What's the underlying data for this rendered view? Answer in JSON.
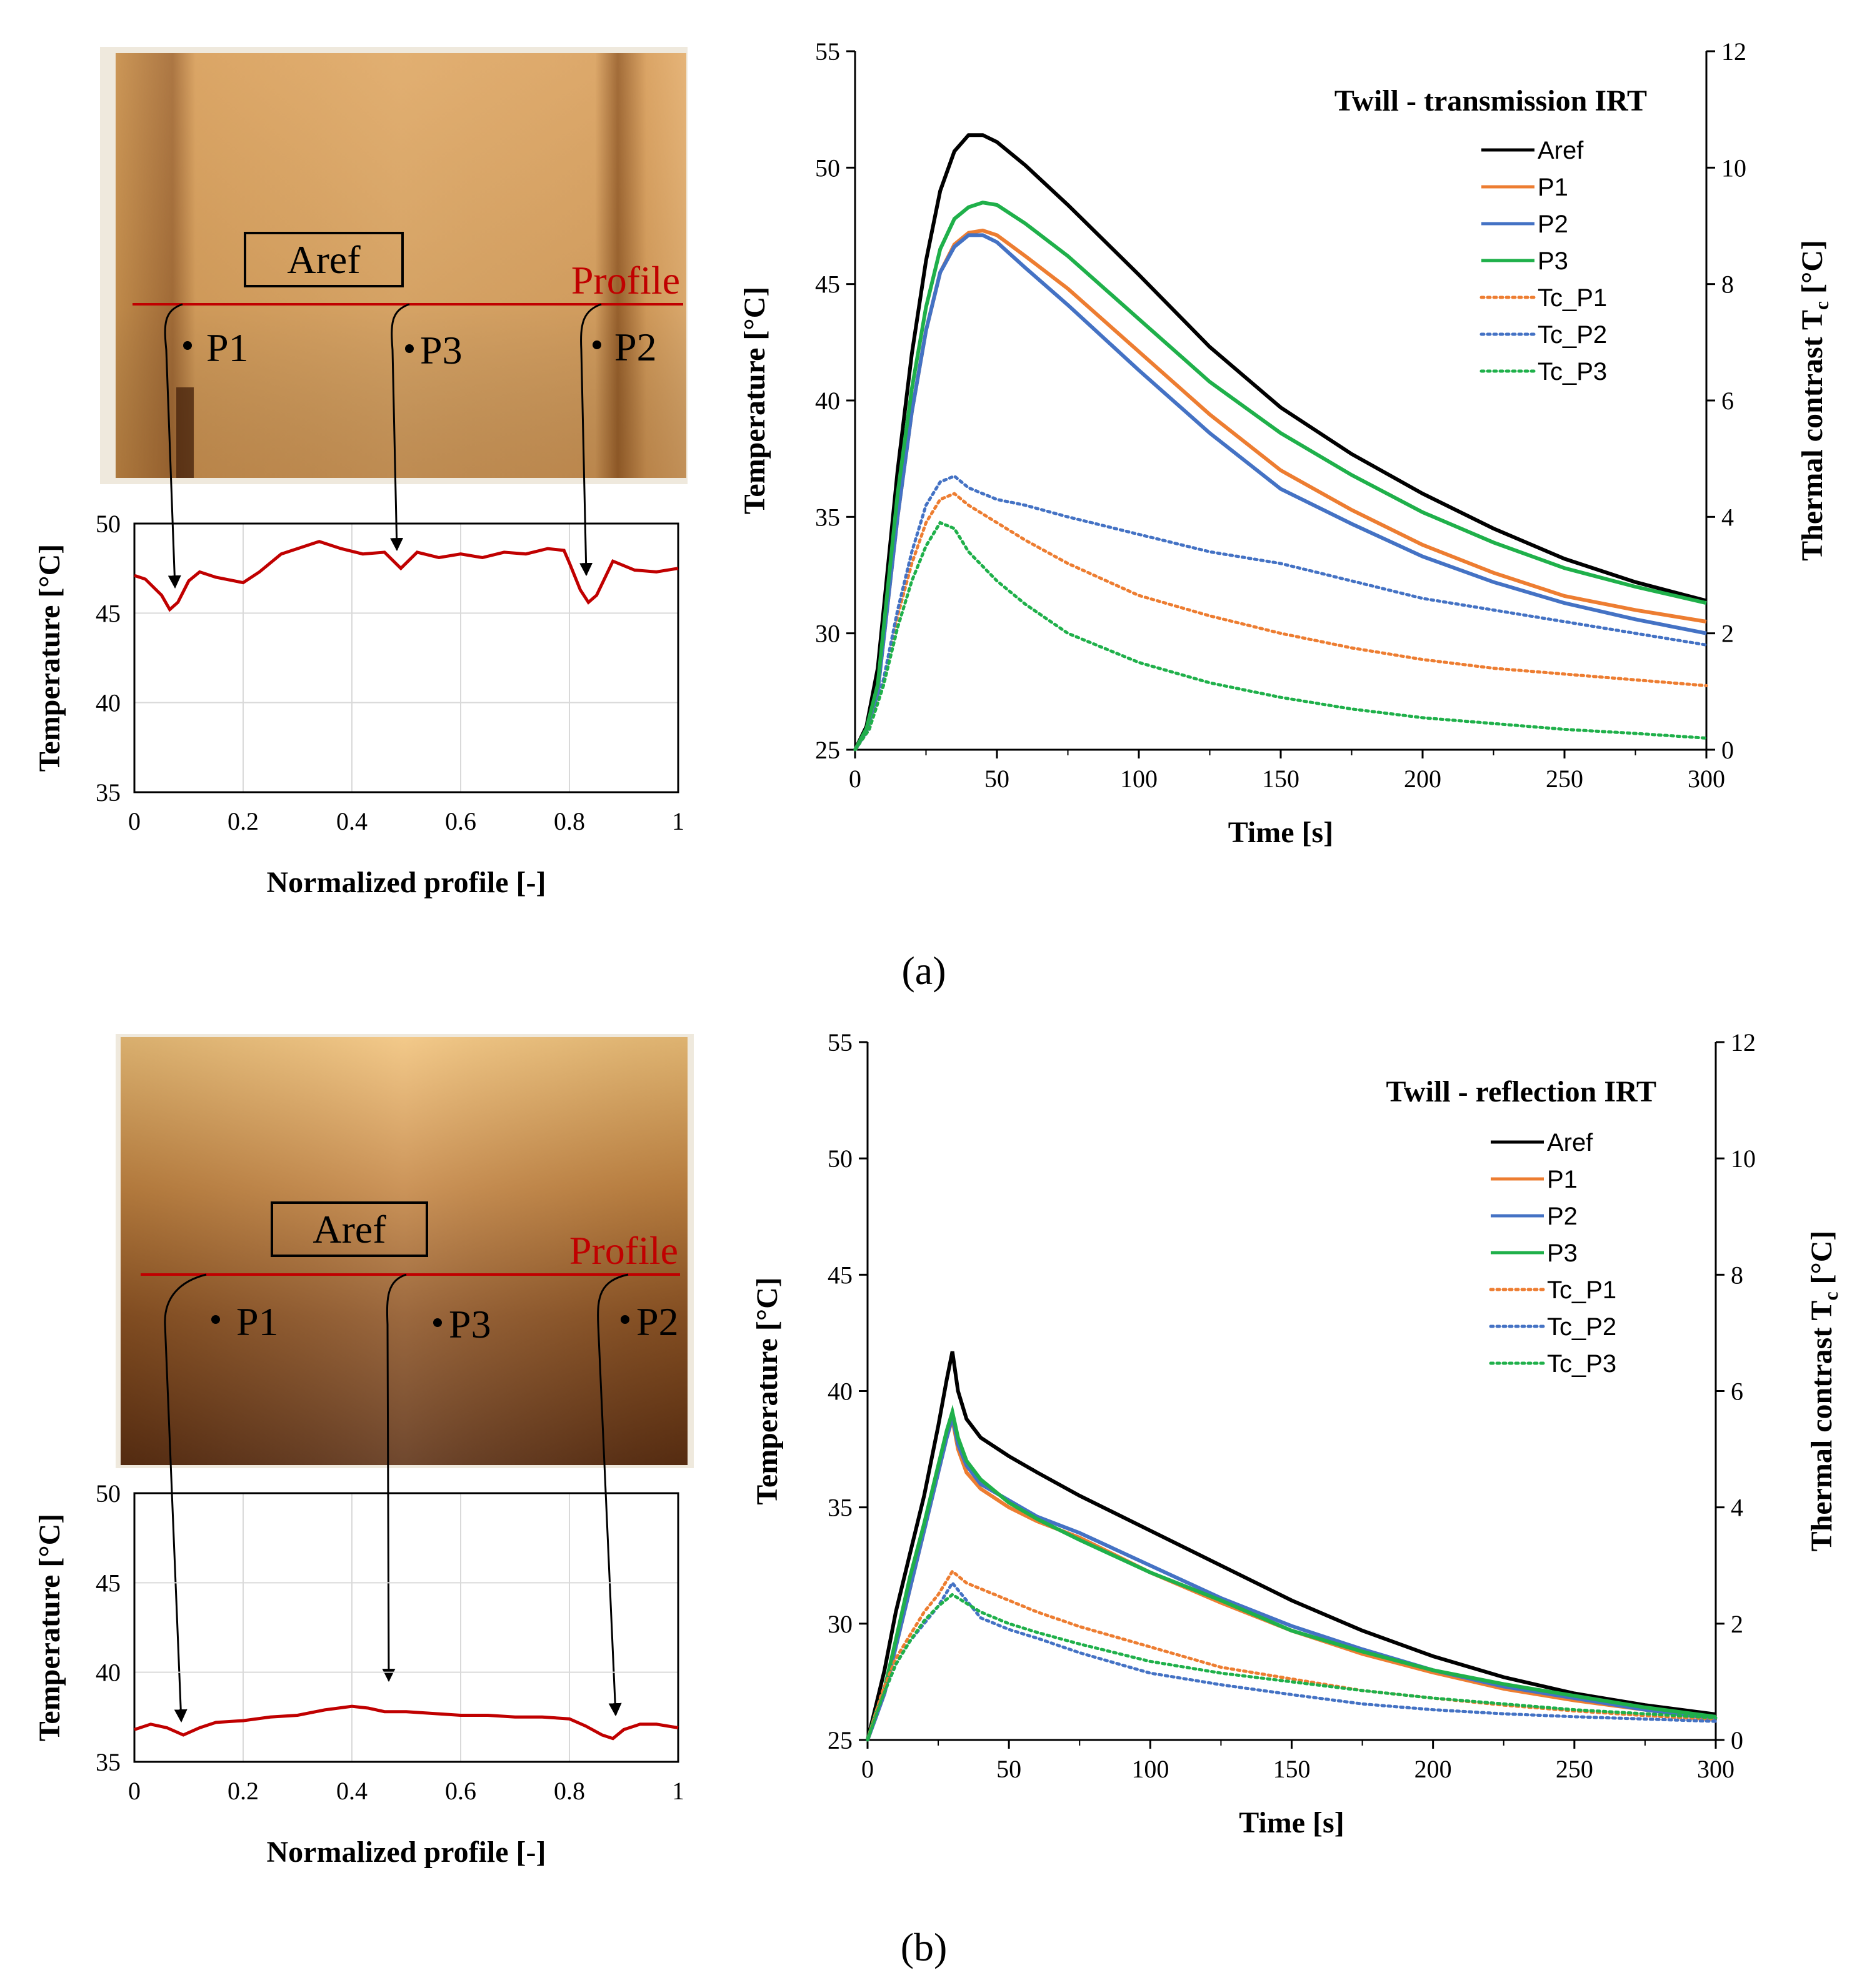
{
  "colors": {
    "aref": "#000000",
    "p1": "#ed7d31",
    "p2": "#4472c4",
    "p3": "#1fb04a",
    "profile": "#c00000"
  },
  "panels": [
    {
      "caption": "(a)",
      "image": {
        "aref_label": "Aref",
        "profile_label": "Profile",
        "points": [
          "P1",
          "P3",
          "P2"
        ],
        "style": "transmission-thermogram"
      },
      "profile_chart": {
        "type": "line",
        "xlabel": "Normalized profile [-]",
        "ylabel": "Temperature [°C]",
        "xlim": [
          0,
          1
        ],
        "ylim": [
          35,
          50
        ],
        "xticks": [
          "0",
          "0.2",
          "0.4",
          "0.6",
          "0.8",
          "1"
        ],
        "yticks": [
          "35",
          "40",
          "45",
          "50"
        ],
        "x": [
          0,
          0.02,
          0.05,
          0.065,
          0.08,
          0.1,
          0.12,
          0.15,
          0.2,
          0.23,
          0.27,
          0.3,
          0.34,
          0.38,
          0.42,
          0.46,
          0.49,
          0.52,
          0.56,
          0.6,
          0.64,
          0.68,
          0.72,
          0.76,
          0.79,
          0.8,
          0.82,
          0.835,
          0.85,
          0.88,
          0.92,
          0.96,
          1
        ],
        "y": [
          47.1,
          46.9,
          46.0,
          45.2,
          45.6,
          46.8,
          47.3,
          47.0,
          46.7,
          47.3,
          48.3,
          48.6,
          49.0,
          48.6,
          48.3,
          48.4,
          47.5,
          48.4,
          48.1,
          48.3,
          48.1,
          48.4,
          48.3,
          48.6,
          48.5,
          47.8,
          46.3,
          45.6,
          46.0,
          47.9,
          47.4,
          47.3,
          47.5
        ]
      },
      "time_chart": {
        "type": "line",
        "title": "Twill - transmission IRT",
        "xlabel": "Time [s]",
        "ylabel": "Temperature [°C]",
        "y2label": "Thermal contrast T",
        "y2label_sub": "c",
        "y2label_unit": " [°C]",
        "xlim": [
          0,
          300
        ],
        "ylim": [
          25,
          55
        ],
        "y2lim": [
          0,
          12
        ],
        "xticks": [
          "0",
          "50",
          "100",
          "150",
          "200",
          "250",
          "300"
        ],
        "yticks": [
          "25",
          "30",
          "35",
          "40",
          "45",
          "50",
          "55"
        ],
        "y2ticks": [
          "0",
          "2",
          "4",
          "6",
          "8",
          "10",
          "12"
        ],
        "legend": [
          "Aref",
          "P1",
          "P2",
          "P3",
          "Tc_P1",
          "Tc_P2",
          "Tc_P3"
        ],
        "series": [
          {
            "name": "Aref",
            "axis": "left",
            "style": "solid",
            "x": [
              0,
              4,
              8,
              15,
              20,
              25,
              30,
              35,
              40,
              45,
              50,
              60,
              75,
              100,
              125,
              150,
              175,
              200,
              225,
              250,
              275,
              300
            ],
            "y": [
              25,
              26,
              28.5,
              37,
              42,
              46,
              49,
              50.7,
              51.4,
              51.4,
              51.1,
              50.1,
              48.4,
              45.4,
              42.3,
              39.7,
              37.7,
              36,
              34.5,
              33.2,
              32.2,
              31.4
            ]
          },
          {
            "name": "P1",
            "axis": "left",
            "style": "solid",
            "x": [
              0,
              4,
              8,
              15,
              20,
              25,
              30,
              35,
              40,
              45,
              50,
              60,
              75,
              100,
              125,
              150,
              175,
              200,
              225,
              250,
              275,
              300
            ],
            "y": [
              25,
              25.8,
              27.5,
              35,
              39.5,
              43,
              45.5,
              46.7,
              47.2,
              47.3,
              47.1,
              46.2,
              44.8,
              42.1,
              39.4,
              37,
              35.3,
              33.8,
              32.6,
              31.6,
              31,
              30.5
            ]
          },
          {
            "name": "P2",
            "axis": "left",
            "style": "solid",
            "x": [
              0,
              4,
              8,
              15,
              20,
              25,
              30,
              35,
              40,
              45,
              50,
              60,
              75,
              100,
              125,
              150,
              175,
              200,
              225,
              250,
              275,
              300
            ],
            "y": [
              25,
              25.8,
              27.5,
              35,
              39.5,
              43,
              45.5,
              46.6,
              47.1,
              47.1,
              46.8,
              45.7,
              44.1,
              41.3,
              38.6,
              36.2,
              34.7,
              33.3,
              32.2,
              31.3,
              30.6,
              30
            ]
          },
          {
            "name": "P3",
            "axis": "left",
            "style": "solid",
            "x": [
              0,
              4,
              8,
              15,
              20,
              25,
              30,
              35,
              40,
              45,
              50,
              60,
              75,
              100,
              125,
              150,
              175,
              200,
              225,
              250,
              275,
              300
            ],
            "y": [
              25,
              25.9,
              27.8,
              36,
              40.5,
              44,
              46.5,
              47.8,
              48.3,
              48.5,
              48.4,
              47.6,
              46.2,
              43.5,
              40.8,
              38.6,
              36.8,
              35.2,
              33.9,
              32.8,
              32,
              31.3
            ]
          },
          {
            "name": "Tc_P1",
            "axis": "right",
            "style": "dotted",
            "x": [
              0,
              5,
              10,
              15,
              20,
              25,
              30,
              35,
              40,
              50,
              60,
              75,
              100,
              125,
              150,
              175,
              200,
              225,
              250,
              275,
              300
            ],
            "y": [
              0,
              0.35,
              1.2,
              2.3,
              3.2,
              3.9,
              4.3,
              4.4,
              4.2,
              3.9,
              3.6,
              3.2,
              2.65,
              2.3,
              2,
              1.75,
              1.55,
              1.4,
              1.3,
              1.2,
              1.1
            ]
          },
          {
            "name": "Tc_P2",
            "axis": "right",
            "style": "dotted",
            "x": [
              0,
              5,
              10,
              15,
              20,
              25,
              30,
              35,
              40,
              50,
              60,
              75,
              100,
              125,
              150,
              175,
              200,
              225,
              250,
              275,
              300
            ],
            "y": [
              0,
              0.35,
              1.2,
              2.4,
              3.4,
              4.2,
              4.6,
              4.7,
              4.5,
              4.3,
              4.2,
              4,
              3.7,
              3.4,
              3.2,
              2.9,
              2.6,
              2.4,
              2.2,
              2,
              1.8
            ]
          },
          {
            "name": "Tc_P3",
            "axis": "right",
            "style": "dotted",
            "x": [
              0,
              5,
              10,
              15,
              20,
              25,
              30,
              35,
              40,
              50,
              60,
              75,
              100,
              125,
              150,
              175,
              200,
              225,
              250,
              275,
              300
            ],
            "y": [
              0,
              0.35,
              1.1,
              2.1,
              2.9,
              3.5,
              3.9,
              3.8,
              3.4,
              2.9,
              2.5,
              2,
              1.5,
              1.15,
              0.9,
              0.7,
              0.55,
              0.45,
              0.35,
              0.28,
              0.2
            ]
          }
        ]
      }
    },
    {
      "caption": "(b)",
      "image": {
        "aref_label": "Aref",
        "profile_label": "Profile",
        "points": [
          "P1",
          "P3",
          "P2"
        ],
        "style": "reflection-thermogram"
      },
      "profile_chart": {
        "type": "line",
        "xlabel": "Normalized profile [-]",
        "ylabel": "Temperature [°C]",
        "xlim": [
          0,
          1
        ],
        "ylim": [
          35,
          50
        ],
        "xticks": [
          "0",
          "0.2",
          "0.4",
          "0.6",
          "0.8",
          "1"
        ],
        "yticks": [
          "35",
          "40",
          "45",
          "50"
        ],
        "x": [
          0,
          0.03,
          0.06,
          0.09,
          0.12,
          0.15,
          0.2,
          0.25,
          0.3,
          0.35,
          0.4,
          0.43,
          0.46,
          0.5,
          0.55,
          0.6,
          0.65,
          0.7,
          0.75,
          0.8,
          0.83,
          0.86,
          0.88,
          0.9,
          0.93,
          0.96,
          1
        ],
        "y": [
          36.8,
          37.1,
          36.9,
          36.5,
          36.9,
          37.2,
          37.3,
          37.5,
          37.6,
          37.9,
          38.1,
          38.0,
          37.8,
          37.8,
          37.7,
          37.6,
          37.6,
          37.5,
          37.5,
          37.4,
          37.0,
          36.5,
          36.3,
          36.8,
          37.1,
          37.1,
          36.9
        ]
      },
      "time_chart": {
        "type": "line",
        "title": "Twill - reflection IRT",
        "xlabel": "Time [s]",
        "ylabel": "Temperature [°C]",
        "y2label": "Thermal contrast T",
        "y2label_sub": "c",
        "y2label_unit": " [°C]",
        "xlim": [
          0,
          300
        ],
        "ylim": [
          25,
          55
        ],
        "y2lim": [
          0,
          12
        ],
        "xticks": [
          "0",
          "50",
          "100",
          "150",
          "200",
          "250",
          "300"
        ],
        "yticks": [
          "25",
          "30",
          "35",
          "40",
          "45",
          "50",
          "55"
        ],
        "y2ticks": [
          "0",
          "2",
          "4",
          "6",
          "8",
          "10",
          "12"
        ],
        "legend": [
          "Aref",
          "P1",
          "P2",
          "P3",
          "Tc_P1",
          "Tc_P2",
          "Tc_P3"
        ],
        "series": [
          {
            "name": "Aref",
            "axis": "left",
            "style": "solid",
            "x": [
              0,
              3,
              6,
              10,
              15,
              20,
              25,
              28,
              30,
              32,
              35,
              40,
              50,
              60,
              75,
              100,
              125,
              150,
              175,
              200,
              225,
              250,
              275,
              300
            ],
            "y": [
              25,
              26.5,
              28,
              30.5,
              33,
              35.5,
              38.5,
              40.5,
              41.7,
              40,
              38.8,
              38,
              37.2,
              36.5,
              35.5,
              34,
              32.5,
              31,
              29.7,
              28.6,
              27.7,
              27,
              26.5,
              26.1
            ]
          },
          {
            "name": "P1",
            "axis": "left",
            "style": "solid",
            "x": [
              0,
              3,
              6,
              10,
              15,
              20,
              25,
              28,
              30,
              32,
              35,
              40,
              50,
              60,
              75,
              100,
              125,
              150,
              175,
              200,
              225,
              250,
              275,
              300
            ],
            "y": [
              25,
              26,
              27,
              29,
              31.5,
              34,
              36.5,
              38,
              38.8,
              37.5,
              36.5,
              35.8,
              35,
              34.4,
              33.7,
              32.2,
              30.9,
              29.7,
              28.7,
              27.9,
              27.2,
              26.7,
              26.3,
              25.9
            ]
          },
          {
            "name": "P2",
            "axis": "left",
            "style": "solid",
            "x": [
              0,
              3,
              6,
              10,
              15,
              20,
              25,
              28,
              30,
              32,
              35,
              40,
              50,
              60,
              75,
              100,
              125,
              150,
              175,
              200,
              225,
              250,
              275,
              300
            ],
            "y": [
              25,
              26,
              27,
              29,
              31.5,
              34,
              36.5,
              38,
              38.9,
              37.7,
              36.8,
              36,
              35.3,
              34.6,
              33.9,
              32.5,
              31.1,
              29.9,
              28.9,
              28,
              27.3,
              26.8,
              26.3,
              25.9
            ]
          },
          {
            "name": "P3",
            "axis": "left",
            "style": "solid",
            "x": [
              0,
              3,
              6,
              10,
              15,
              20,
              25,
              28,
              30,
              32,
              35,
              40,
              50,
              60,
              75,
              100,
              125,
              150,
              175,
              200,
              225,
              250,
              275,
              300
            ],
            "y": [
              25,
              26.2,
              27.2,
              29.3,
              32,
              34.3,
              36.8,
              38.3,
              39.1,
              38,
              37,
              36.2,
              35.2,
              34.5,
              33.6,
              32.2,
              31,
              29.7,
              28.8,
              28,
              27.4,
              26.9,
              26.4,
              26
            ]
          },
          {
            "name": "Tc_P1",
            "axis": "right",
            "style": "dotted",
            "x": [
              0,
              5,
              10,
              15,
              20,
              25,
              30,
              35,
              40,
              50,
              60,
              75,
              100,
              125,
              150,
              175,
              200,
              225,
              250,
              275,
              300
            ],
            "y": [
              0,
              0.8,
              1.4,
              1.8,
              2.2,
              2.5,
              2.9,
              2.7,
              2.6,
              2.4,
              2.2,
              1.95,
              1.6,
              1.25,
              1.05,
              0.85,
              0.72,
              0.6,
              0.5,
              0.42,
              0.35
            ]
          },
          {
            "name": "Tc_P2",
            "axis": "right",
            "style": "dotted",
            "x": [
              0,
              5,
              10,
              15,
              20,
              25,
              30,
              35,
              40,
              50,
              60,
              75,
              100,
              125,
              150,
              175,
              200,
              225,
              250,
              275,
              300
            ],
            "y": [
              0,
              0.7,
              1.3,
              1.7,
              2,
              2.3,
              2.7,
              2.4,
              2.1,
              1.9,
              1.75,
              1.5,
              1.15,
              0.95,
              0.78,
              0.62,
              0.52,
              0.45,
              0.4,
              0.36,
              0.32
            ]
          },
          {
            "name": "Tc_P3",
            "axis": "right",
            "style": "dotted",
            "x": [
              0,
              5,
              10,
              15,
              20,
              25,
              30,
              35,
              40,
              50,
              60,
              75,
              100,
              125,
              150,
              175,
              200,
              225,
              250,
              275,
              300
            ],
            "y": [
              0,
              0.7,
              1.3,
              1.7,
              2.05,
              2.3,
              2.5,
              2.35,
              2.2,
              2,
              1.85,
              1.65,
              1.35,
              1.15,
              1,
              0.85,
              0.72,
              0.62,
              0.52,
              0.45,
              0.38
            ]
          }
        ]
      }
    }
  ]
}
